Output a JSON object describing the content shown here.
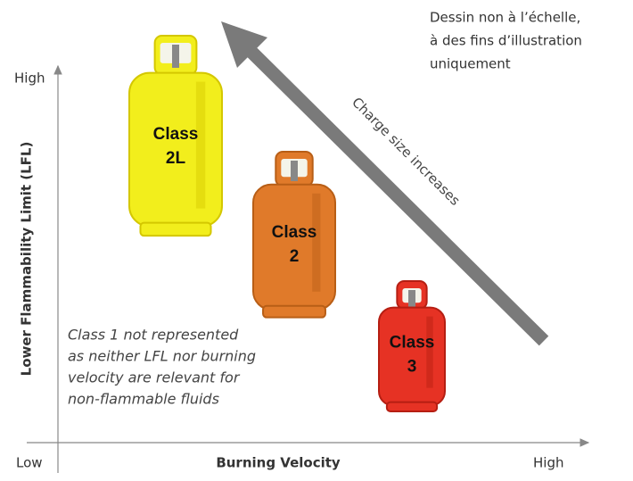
{
  "note": {
    "lines": [
      "Dessin non à l’échelle,",
      "à des fins d’illustration",
      "uniquement"
    ]
  },
  "arrow_label": "Charge size increases",
  "y_axis": {
    "title": "Lower Flammability Limit (LFL)",
    "high": "High"
  },
  "x_axis": {
    "title": "Burning Velocity",
    "high": "High"
  },
  "origin_label": "Low",
  "cylinders": [
    {
      "class_label": "Class",
      "class_name": "2L"
    },
    {
      "class_label": "Class",
      "class_name": "2"
    },
    {
      "class_label": "Class",
      "class_name": "3"
    }
  ],
  "footnote": {
    "lines": [
      "Class 1 not represented",
      "as neither LFL nor burning",
      "velocity are relevant for",
      "non-flammable fluids"
    ]
  }
}
